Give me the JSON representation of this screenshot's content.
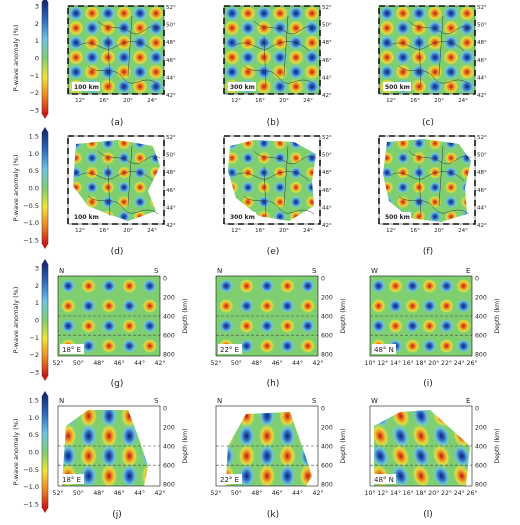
{
  "colorbars": [
    {
      "label": "P-wave anomaly (%)",
      "ticks": [
        "3",
        "2",
        "1",
        "0",
        "−1",
        "−2",
        "−3"
      ]
    },
    {
      "label": "P-wave anomaly (%)",
      "ticks": [
        "1.5",
        "1.0",
        "0.5",
        "0.0",
        "−0.5",
        "−1.0",
        "−1.5"
      ]
    },
    {
      "label": "P-wave anomaly (%)",
      "ticks": [
        "3",
        "2",
        "1",
        "0",
        "−1",
        "−2",
        "−3"
      ]
    },
    {
      "label": "P-wave anomaly (%)",
      "ticks": [
        "1.5",
        "1.0",
        "0.5",
        "0.0",
        "−0.5",
        "−1.0",
        "−1.5"
      ]
    }
  ],
  "map_lon_ticks": [
    "12°",
    "16°",
    "20°",
    "24°"
  ],
  "map_lat_ticks": [
    "52°",
    "50°",
    "48°",
    "46°",
    "44°",
    "42°"
  ],
  "panels_row1": [
    {
      "caption": "(a)",
      "label": "100 km"
    },
    {
      "caption": "(b)",
      "label": "300 km"
    },
    {
      "caption": "(c)",
      "label": "500 km"
    }
  ],
  "panels_row2": [
    {
      "caption": "(d)",
      "label": "100 km"
    },
    {
      "caption": "(e)",
      "label": "300 km"
    },
    {
      "caption": "(f)",
      "label": "500 km"
    }
  ],
  "depth_axis": {
    "label": "Depth (km)",
    "ticks": [
      "0",
      "200",
      "400",
      "600",
      "800"
    ]
  },
  "sections_row3": [
    {
      "caption": "(g)",
      "label": "18° E",
      "left": "N",
      "right": "S",
      "xticks": [
        "52°",
        "50°",
        "48°",
        "46°",
        "44°",
        "42°"
      ]
    },
    {
      "caption": "(h)",
      "label": "22° E",
      "left": "N",
      "right": "S",
      "xticks": [
        "52°",
        "50°",
        "48°",
        "46°",
        "44°",
        "42°"
      ]
    },
    {
      "caption": "(i)",
      "label": "48° N",
      "left": "W",
      "right": "E",
      "xticks": [
        "10°",
        "12°",
        "14°",
        "16°",
        "18°",
        "20°",
        "22°",
        "24°",
        "26°"
      ]
    }
  ],
  "sections_row4": [
    {
      "caption": "(j)",
      "label": "18° E",
      "left": "N",
      "right": "S",
      "xticks": [
        "52°",
        "50°",
        "48°",
        "46°",
        "44°",
        "42°"
      ]
    },
    {
      "caption": "(k)",
      "label": "22° E",
      "left": "N",
      "right": "S",
      "xticks": [
        "52°",
        "50°",
        "48°",
        "46°",
        "44°",
        "42°"
      ]
    },
    {
      "caption": "(l)",
      "label": "48° N",
      "left": "W",
      "right": "E",
      "xticks": [
        "10°",
        "12°",
        "14°",
        "16°",
        "18°",
        "20°",
        "22°",
        "24°",
        "26°"
      ]
    }
  ]
}
